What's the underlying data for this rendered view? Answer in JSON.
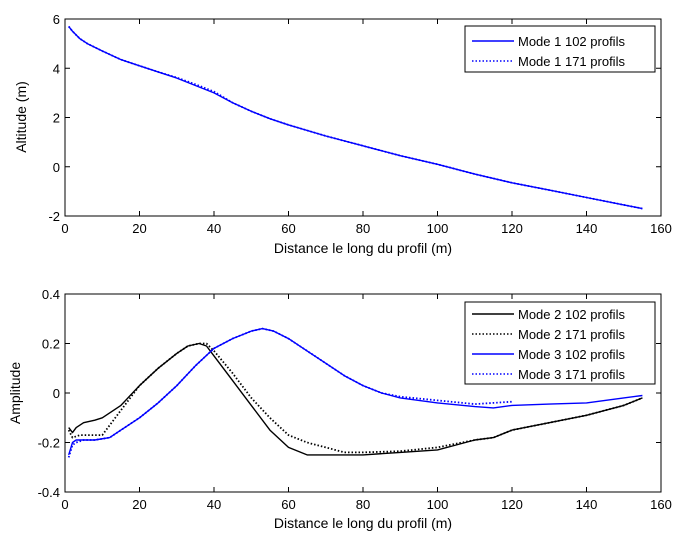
{
  "chart_data": [
    {
      "type": "line",
      "xlabel": "Distance le long du profil (m)",
      "ylabel": "Altitude (m)",
      "xlim": [
        0,
        160
      ],
      "ylim": [
        -2,
        6
      ],
      "xticks": [
        "0",
        "20",
        "40",
        "60",
        "80",
        "100",
        "120",
        "140",
        "160"
      ],
      "yticks": [
        "-2",
        "0",
        "2",
        "4",
        "6"
      ],
      "grid": false,
      "legend_position": "top-right",
      "series": [
        {
          "name": "Mode 1 102 profils",
          "color": "#0000ff",
          "style": "solid",
          "x": [
            1,
            2,
            4,
            6,
            10,
            15,
            20,
            25,
            30,
            35,
            40,
            45,
            50,
            55,
            60,
            70,
            80,
            90,
            100,
            110,
            120,
            130,
            140,
            150,
            155
          ],
          "y": [
            5.7,
            5.5,
            5.2,
            5.0,
            4.7,
            4.35,
            4.1,
            3.85,
            3.6,
            3.3,
            3.0,
            2.6,
            2.25,
            1.95,
            1.7,
            1.25,
            0.85,
            0.45,
            0.1,
            -0.3,
            -0.65,
            -0.95,
            -1.25,
            -1.55,
            -1.7
          ]
        },
        {
          "name": "Mode 1 171 profils",
          "color": "#0000ff",
          "style": "dotted",
          "x": [
            1,
            2,
            4,
            6,
            10,
            15,
            20,
            25,
            30,
            35,
            40,
            45,
            50,
            55,
            60,
            70,
            80,
            90,
            100,
            110,
            120,
            130,
            140,
            150,
            155
          ],
          "y": [
            5.7,
            5.5,
            5.2,
            5.0,
            4.7,
            4.35,
            4.1,
            3.85,
            3.62,
            3.35,
            3.05,
            2.6,
            2.25,
            1.95,
            1.7,
            1.25,
            0.85,
            0.45,
            0.1,
            -0.3,
            -0.65,
            -0.95,
            -1.25,
            -1.55,
            -1.7
          ]
        }
      ]
    },
    {
      "type": "line",
      "xlabel": "Distance le long du profil (m)",
      "ylabel": "Amplitude",
      "xlim": [
        0,
        160
      ],
      "ylim": [
        -0.4,
        0.4
      ],
      "xticks": [
        "0",
        "20",
        "40",
        "60",
        "80",
        "100",
        "120",
        "140",
        "160"
      ],
      "yticks": [
        "-0.4",
        "-0.2",
        "0",
        "0.2",
        "0.4"
      ],
      "grid": false,
      "legend_position": "top-right",
      "series": [
        {
          "name": "Mode 2 102 profils",
          "color": "#000000",
          "style": "solid",
          "x": [
            1,
            2,
            3,
            5,
            8,
            10,
            15,
            20,
            25,
            30,
            33,
            36,
            38,
            40,
            45,
            50,
            55,
            60,
            65,
            70,
            75,
            80,
            90,
            100,
            105,
            110,
            115,
            120,
            130,
            140,
            150,
            155
          ],
          "y": [
            -0.14,
            -0.16,
            -0.14,
            -0.12,
            -0.11,
            -0.1,
            -0.05,
            0.03,
            0.1,
            0.16,
            0.19,
            0.2,
            0.19,
            0.15,
            0.05,
            -0.05,
            -0.15,
            -0.22,
            -0.25,
            -0.25,
            -0.25,
            -0.25,
            -0.24,
            -0.23,
            -0.21,
            -0.19,
            -0.18,
            -0.15,
            -0.12,
            -0.09,
            -0.05,
            -0.02
          ]
        },
        {
          "name": "Mode 2 171 profils",
          "color": "#000000",
          "style": "dotted",
          "x": [
            1,
            2,
            4,
            6,
            8,
            10,
            15,
            20,
            25,
            30,
            33,
            36,
            38,
            40,
            45,
            50,
            55,
            60,
            65,
            70,
            75,
            80,
            90,
            100,
            105,
            110,
            115,
            120,
            130,
            140,
            150,
            155
          ],
          "y": [
            -0.15,
            -0.18,
            -0.17,
            -0.17,
            -0.17,
            -0.17,
            -0.07,
            0.03,
            0.1,
            0.16,
            0.19,
            0.2,
            0.2,
            0.17,
            0.08,
            -0.02,
            -0.1,
            -0.17,
            -0.2,
            -0.22,
            -0.24,
            -0.24,
            -0.235,
            -0.22,
            -0.205,
            -0.19,
            -0.18,
            -0.15,
            -0.12,
            -0.09,
            -0.05,
            -0.02
          ]
        },
        {
          "name": "Mode 3 102 profils",
          "color": "#0000ff",
          "style": "solid",
          "x": [
            1,
            2,
            3,
            5,
            8,
            12,
            15,
            20,
            25,
            30,
            35,
            40,
            45,
            50,
            53,
            56,
            60,
            65,
            70,
            75,
            80,
            85,
            90,
            100,
            110,
            115,
            120,
            130,
            140,
            145,
            150,
            155
          ],
          "y": [
            -0.25,
            -0.2,
            -0.19,
            -0.19,
            -0.19,
            -0.18,
            -0.15,
            -0.1,
            -0.04,
            0.03,
            0.11,
            0.18,
            0.22,
            0.25,
            0.26,
            0.25,
            0.22,
            0.17,
            0.12,
            0.07,
            0.03,
            0.0,
            -0.02,
            -0.04,
            -0.055,
            -0.06,
            -0.05,
            -0.045,
            -0.04,
            -0.03,
            -0.02,
            -0.01
          ]
        },
        {
          "name": "Mode 3 171 profils",
          "color": "#0000ff",
          "style": "dotted",
          "x": [
            1,
            2,
            3,
            5,
            8,
            12,
            15,
            20,
            25,
            30,
            35,
            40,
            45,
            50,
            53,
            56,
            60,
            65,
            70,
            75,
            80,
            85,
            90,
            100,
            110,
            115,
            120
          ],
          "y": [
            -0.26,
            -0.21,
            -0.2,
            -0.19,
            -0.19,
            -0.18,
            -0.15,
            -0.1,
            -0.04,
            0.03,
            0.11,
            0.18,
            0.22,
            0.25,
            0.26,
            0.25,
            0.22,
            0.17,
            0.12,
            0.07,
            0.03,
            0.0,
            -0.015,
            -0.03,
            -0.045,
            -0.04,
            -0.035
          ]
        }
      ]
    }
  ]
}
